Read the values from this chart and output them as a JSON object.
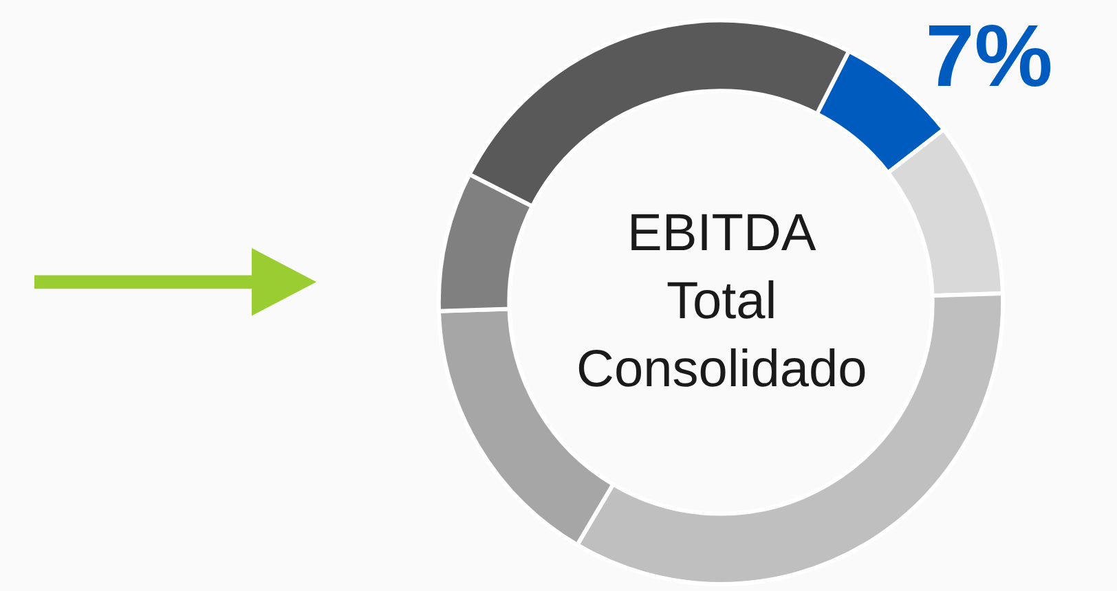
{
  "chart_data": {
    "type": "donut",
    "title": "EBITDA\nTotal\nConsolidado",
    "categories": [
      null,
      null,
      null,
      null,
      null,
      null
    ],
    "values": [
      7,
      10,
      34,
      16,
      8,
      25
    ],
    "colors": [
      "#005bbf",
      "#d9d9d9",
      "#bfbfbf",
      "#a6a6a6",
      "#808080",
      "#595959"
    ],
    "value_labels": [
      "7%",
      null,
      null,
      null,
      null,
      null
    ]
  }
}
